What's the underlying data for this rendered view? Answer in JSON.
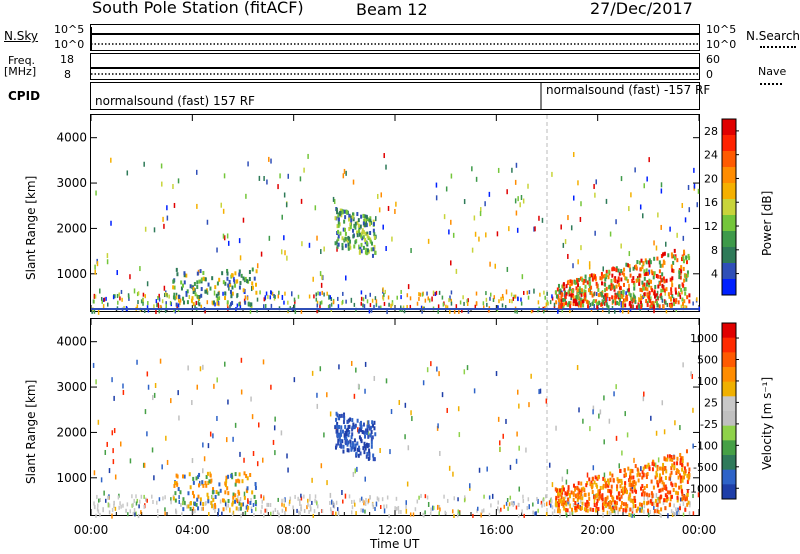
{
  "header": {
    "station": "South Pole Station (fitACF)",
    "beam": "Beam 12",
    "date": "27/Dec/2017"
  },
  "status_panel": {
    "nsky_label": "N.Sky",
    "nsearch_label": "N.Search",
    "left_ticks_top": [
      "10^5",
      "10^0"
    ],
    "right_ticks_top": [
      "10^5",
      "10^0"
    ],
    "freq_label_1": "Freq.",
    "freq_label_2": "[MHz]",
    "freq_ticks": [
      "18",
      "8"
    ],
    "nave_label": "Nave",
    "nave_ticks": [
      "60",
      "0"
    ],
    "cpid_label": "CPID",
    "cpid_segments": [
      "normalsound (fast) 157 RF",
      "normalsound (fast) -157 RF"
    ]
  },
  "chart_data": [
    {
      "type": "heatmap",
      "name": "power",
      "title": "",
      "xlabel": "",
      "ylabel": "Slant Range [km]",
      "x_ticks": [
        "00:00",
        "04:00",
        "08:00",
        "12:00",
        "16:00",
        "20:00",
        "00:00"
      ],
      "xlim_hours": [
        0,
        24
      ],
      "y_ticks": [
        1000,
        2000,
        3000,
        4000
      ],
      "ylim": [
        180,
        4500
      ],
      "colorbar_label": "Power [dB]",
      "colorbar_ticks": [
        "4",
        "8",
        "12",
        "16",
        "20",
        "24",
        "28"
      ],
      "colorbar_colors": [
        "#0020ff",
        "#2f4fb8",
        "#2e7a58",
        "#3e9a4a",
        "#74c63a",
        "#c8d43a",
        "#f5b000",
        "#ff8c00",
        "#ff5a00",
        "#ff2200",
        "#e00000"
      ],
      "cpid_change_hour": 18.0
    },
    {
      "type": "heatmap",
      "name": "velocity",
      "title": "",
      "xlabel": "Time UT",
      "ylabel": "Slant Range [km]",
      "x_ticks": [
        "00:00",
        "04:00",
        "08:00",
        "12:00",
        "16:00",
        "20:00",
        "00:00"
      ],
      "xlim_hours": [
        0,
        24
      ],
      "y_ticks": [
        1000,
        2000,
        3000,
        4000
      ],
      "ylim": [
        180,
        4500
      ],
      "colorbar_label": "Velocity [m s⁻¹]",
      "colorbar_ticks": [
        "1000",
        "500",
        "100",
        "25",
        "-25",
        "-100",
        "-500",
        "-1000"
      ],
      "colorbar_colors": [
        "#1e3ea8",
        "#2e63c8",
        "#2f7a5a",
        "#46a046",
        "#8fd24a",
        "#c0c0c0",
        "#c8c8c8",
        "#f0b000",
        "#ff8c00",
        "#ff5a00",
        "#ff2a00",
        "#e00000"
      ],
      "cpid_change_hour": 18.0
    }
  ]
}
